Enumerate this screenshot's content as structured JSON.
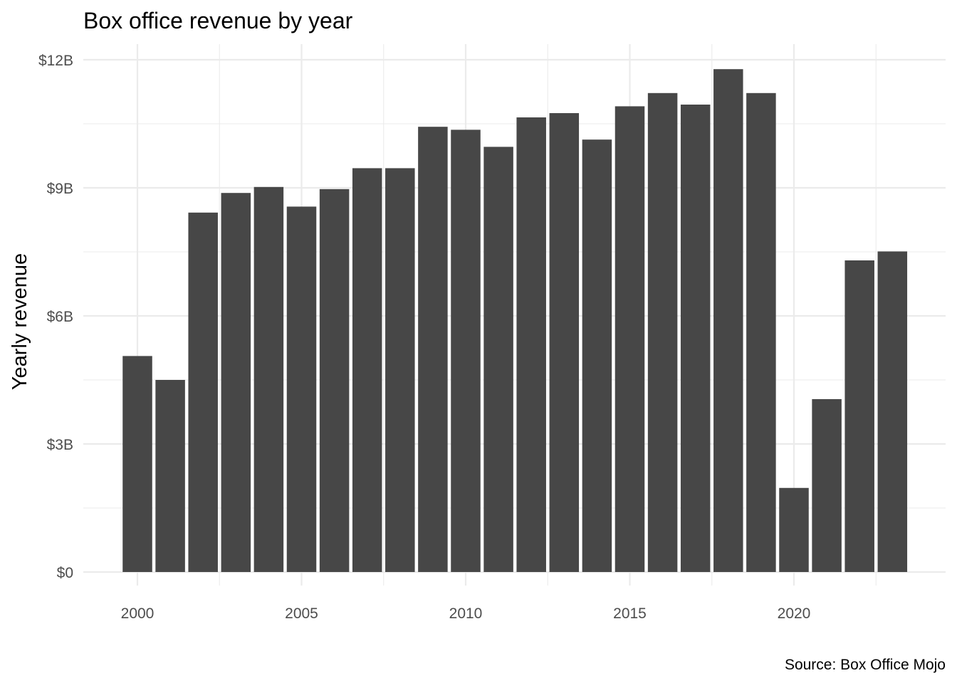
{
  "chart_data": {
    "type": "bar",
    "title": "Box office revenue by year",
    "xlabel": "",
    "ylabel": "Yearly revenue",
    "caption": "Source: Box Office Mojo",
    "categories": [
      2000,
      2001,
      2002,
      2003,
      2004,
      2005,
      2006,
      2007,
      2008,
      2009,
      2010,
      2011,
      2012,
      2013,
      2014,
      2015,
      2016,
      2017,
      2018,
      2019,
      2020,
      2021,
      2022,
      2023
    ],
    "values": [
      5.06,
      4.5,
      8.42,
      8.88,
      9.02,
      8.56,
      8.97,
      9.46,
      9.46,
      10.43,
      10.36,
      9.96,
      10.65,
      10.75,
      10.13,
      10.91,
      11.22,
      10.95,
      11.78,
      11.22,
      1.97,
      4.05,
      7.3,
      7.51
    ],
    "value_units": "billions USD",
    "ylim": [
      0,
      12
    ],
    "y_ticks": [
      0,
      3,
      6,
      9,
      12
    ],
    "y_tick_labels": [
      "$0",
      "$3B",
      "$6B",
      "$9B",
      "$12B"
    ],
    "x_ticks": [
      2000,
      2005,
      2010,
      2015,
      2020
    ],
    "x_tick_labels": [
      "2000",
      "2005",
      "2010",
      "2015",
      "2020"
    ],
    "grid": true,
    "bar_color": "#474747",
    "grid_color": "#ebebeb"
  }
}
